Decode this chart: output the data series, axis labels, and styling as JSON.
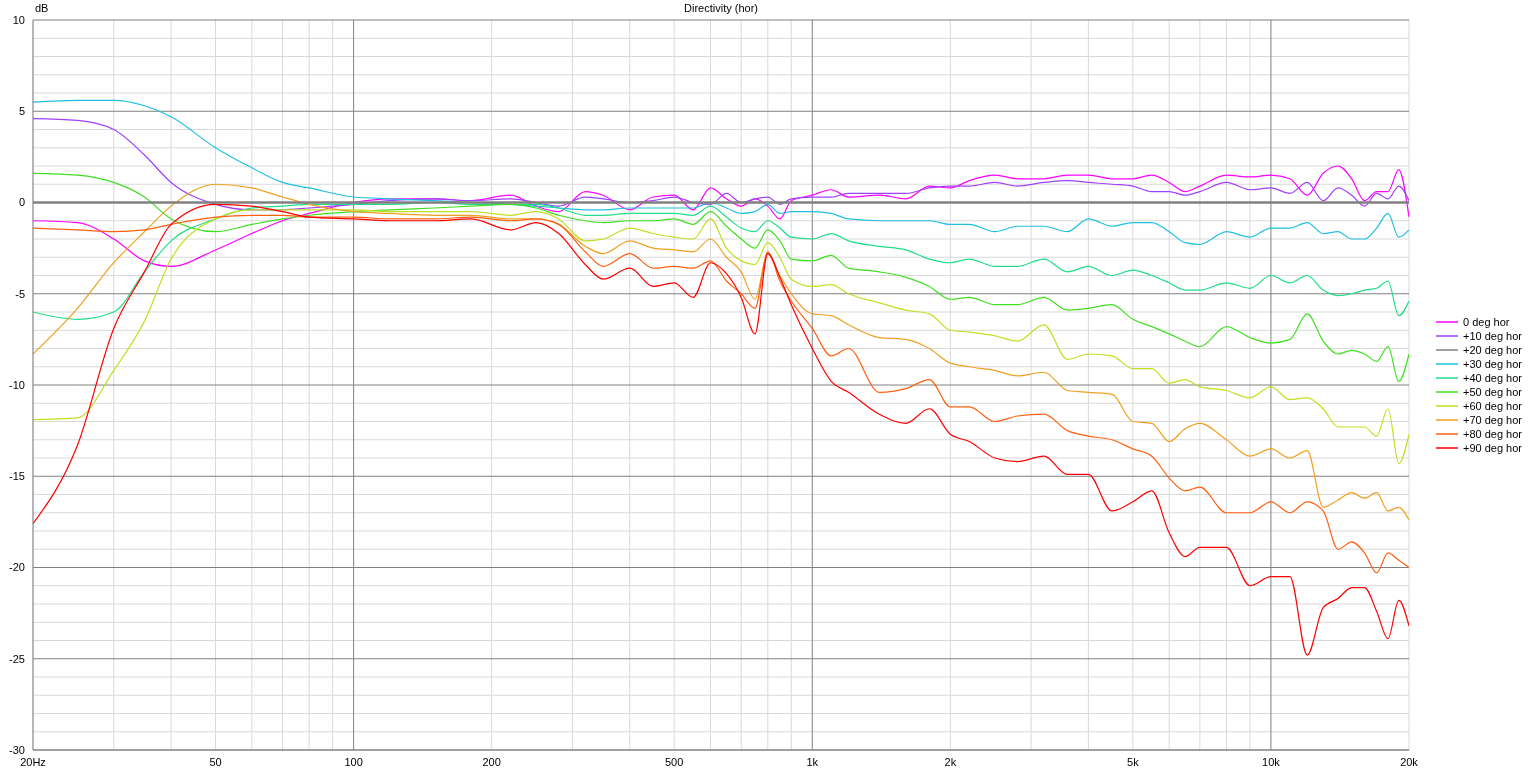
{
  "chart_data": {
    "type": "line",
    "title": "Directivity (hor)",
    "ylabel": "dB",
    "x": [
      20,
      25,
      30,
      35,
      40,
      50,
      60,
      70,
      80,
      100,
      120,
      150,
      180,
      220,
      250,
      280,
      320,
      350,
      400,
      450,
      500,
      550,
      600,
      650,
      700,
      750,
      800,
      850,
      900,
      1000,
      1100,
      1200,
      1400,
      1600,
      1800,
      2000,
      2200,
      2500,
      2800,
      3200,
      3600,
      4000,
      4500,
      5000,
      5500,
      6000,
      6500,
      7000,
      8000,
      9000,
      10000,
      11000,
      12000,
      13000,
      14000,
      15000,
      16000,
      17000,
      18000,
      19000,
      20000
    ],
    "log": "x",
    "xlim": [
      20,
      20000
    ],
    "xticks": [
      {
        "value": 20,
        "label": "20Hz"
      },
      {
        "value": 30,
        "label": null
      },
      {
        "value": 40,
        "label": null
      },
      50,
      {
        "value": 60,
        "label": null
      },
      {
        "value": 70,
        "label": null
      },
      {
        "value": 80,
        "label": null
      },
      {
        "value": 90,
        "label": null
      },
      100,
      200,
      {
        "value": 300,
        "label": null
      },
      {
        "value": 400,
        "label": null
      },
      500,
      {
        "value": 600,
        "label": null
      },
      {
        "value": 700,
        "label": null
      },
      {
        "value": 800,
        "label": null
      },
      {
        "value": 900,
        "label": null
      },
      {
        "value": 1000,
        "label": "1k"
      },
      {
        "value": 2000,
        "label": "2k"
      },
      {
        "value": 3000,
        "label": null
      },
      {
        "value": 4000,
        "label": null
      },
      {
        "value": 5000,
        "label": "5k"
      },
      {
        "value": 6000,
        "label": null
      },
      {
        "value": 7000,
        "label": null
      },
      {
        "value": 8000,
        "label": null
      },
      {
        "value": 9000,
        "label": null
      },
      {
        "value": 10000,
        "label": "10k"
      },
      {
        "value": 20000,
        "label": "20k"
      }
    ],
    "ylim": [
      -30,
      10
    ],
    "yticks": [
      -30,
      {
        "value": -29,
        "label": null
      },
      {
        "value": -28,
        "label": null
      },
      {
        "value": -27,
        "label": null
      },
      {
        "value": -26,
        "label": null
      },
      -25,
      {
        "value": -24,
        "label": null
      },
      {
        "value": -23,
        "label": null
      },
      {
        "value": -22,
        "label": null
      },
      {
        "value": -21,
        "label": null
      },
      -20,
      {
        "value": -19,
        "label": null
      },
      {
        "value": -18,
        "label": null
      },
      {
        "value": -17,
        "label": null
      },
      {
        "value": -16,
        "label": null
      },
      -15,
      {
        "value": -14,
        "label": null
      },
      {
        "value": -13,
        "label": null
      },
      {
        "value": -12,
        "label": null
      },
      {
        "value": -11,
        "label": null
      },
      -10,
      {
        "value": -9,
        "label": null
      },
      {
        "value": -8,
        "label": null
      },
      {
        "value": -7,
        "label": null
      },
      {
        "value": -6,
        "label": null
      },
      -5,
      {
        "value": -4,
        "label": null
      },
      {
        "value": -3,
        "label": null
      },
      {
        "value": -2,
        "label": null
      },
      {
        "value": -1,
        "label": null
      },
      0,
      {
        "value": 1,
        "label": null
      },
      {
        "value": 2,
        "label": null
      },
      {
        "value": 3,
        "label": null
      },
      {
        "value": 4,
        "label": null
      },
      5,
      {
        "value": 6,
        "label": null
      },
      {
        "value": 7,
        "label": null
      },
      {
        "value": 8,
        "label": null
      },
      {
        "value": 9,
        "label": null
      },
      10
    ],
    "grid": true,
    "legend": "right",
    "series": [
      {
        "name": "0 deg hor",
        "color": "#ff00ff",
        "values": [
          -1.0,
          -1.1,
          -2.0,
          -3.2,
          -3.5,
          -2.6,
          -1.7,
          -1.0,
          -0.6,
          0.0,
          0.2,
          0.2,
          0.1,
          0.4,
          -0.2,
          -0.5,
          0.6,
          0.4,
          -0.4,
          0.3,
          0.4,
          -0.4,
          0.8,
          0.2,
          -0.2,
          0.2,
          -0.2,
          -0.9,
          0.1,
          0.4,
          0.7,
          0.3,
          0.4,
          0.2,
          0.9,
          0.8,
          1.2,
          1.5,
          1.3,
          1.3,
          1.5,
          1.5,
          1.3,
          1.3,
          1.5,
          1.1,
          0.6,
          0.9,
          1.5,
          1.4,
          1.5,
          1.3,
          0.4,
          1.6,
          2.0,
          1.3,
          0.1,
          0.6,
          0.6,
          1.8,
          -0.8
        ]
      },
      {
        "name": "+10 deg hor",
        "color": "#a040ff",
        "values": [
          4.6,
          4.5,
          4.0,
          2.6,
          1.1,
          -0.1,
          -0.4,
          -0.4,
          -0.3,
          -0.1,
          0.1,
          0.2,
          0.1,
          0.2,
          0.0,
          -0.2,
          0.3,
          0.2,
          0.0,
          0.1,
          0.3,
          0.0,
          -0.1,
          0.5,
          0.0,
          0.2,
          0.3,
          -0.1,
          0.2,
          0.3,
          0.3,
          0.5,
          0.5,
          0.5,
          0.8,
          0.9,
          0.9,
          1.1,
          0.9,
          1.1,
          1.2,
          1.1,
          1.0,
          0.9,
          0.6,
          0.6,
          0.4,
          0.6,
          1.1,
          0.7,
          0.8,
          0.5,
          1.1,
          0.1,
          0.8,
          0.4,
          -0.2,
          0.5,
          0.2,
          0.9,
          0.1
        ]
      },
      {
        "name": "+20 deg hor",
        "color": "#808080",
        "values": [
          0,
          0,
          0,
          0,
          0,
          0,
          0,
          0,
          0,
          0,
          0,
          0,
          0,
          0,
          0,
          0,
          0,
          0,
          0,
          0,
          0,
          0,
          0,
          0,
          0,
          0,
          0,
          0,
          0,
          0,
          0,
          0,
          0,
          0,
          0,
          0,
          0,
          0,
          0,
          0,
          0,
          0,
          0,
          0,
          0,
          0,
          0,
          0,
          0,
          0,
          0,
          0,
          0,
          0,
          0,
          0,
          0,
          0,
          0,
          0,
          0
        ]
      },
      {
        "name": "+30 deg hor",
        "color": "#20c0e0",
        "values": [
          5.5,
          5.6,
          5.6,
          5.3,
          4.7,
          3.0,
          1.9,
          1.1,
          0.8,
          0.3,
          0.2,
          0.1,
          0.0,
          -0.1,
          -0.2,
          -0.3,
          -0.4,
          -0.4,
          -0.3,
          -0.3,
          -0.3,
          -0.3,
          0.0,
          -0.3,
          -0.6,
          -0.5,
          -0.1,
          -0.6,
          -0.5,
          -0.5,
          -0.6,
          -0.9,
          -1.0,
          -1.0,
          -1.0,
          -1.2,
          -1.2,
          -1.6,
          -1.3,
          -1.3,
          -1.6,
          -0.9,
          -1.3,
          -1.1,
          -1.1,
          -1.6,
          -2.2,
          -2.3,
          -1.6,
          -1.9,
          -1.4,
          -1.4,
          -1.1,
          -1.7,
          -1.6,
          -2.0,
          -2.0,
          -1.4,
          -0.6,
          -1.9,
          -1.5
        ]
      },
      {
        "name": "+40 deg hor",
        "color": "#20dd88",
        "values": [
          -6.0,
          -6.4,
          -6.0,
          -3.8,
          -2.1,
          -0.9,
          -0.3,
          -0.2,
          -0.1,
          -0.1,
          -0.1,
          0.0,
          -0.1,
          -0.1,
          -0.1,
          -0.3,
          -0.7,
          -0.7,
          -0.6,
          -0.6,
          -0.6,
          -0.7,
          -0.2,
          -0.8,
          -1.4,
          -1.6,
          -1.0,
          -1.4,
          -1.9,
          -2.0,
          -1.7,
          -2.1,
          -2.4,
          -2.6,
          -3.1,
          -3.3,
          -3.1,
          -3.5,
          -3.5,
          -3.1,
          -3.8,
          -3.5,
          -4.0,
          -3.7,
          -4.0,
          -4.4,
          -4.8,
          -4.8,
          -4.4,
          -4.7,
          -4.0,
          -4.4,
          -4.0,
          -4.8,
          -5.1,
          -5.0,
          -4.8,
          -4.7,
          -4.3,
          -6.2,
          -5.4
        ]
      },
      {
        "name": "+50 deg hor",
        "color": "#40e020",
        "values": [
          1.6,
          1.5,
          1.1,
          0.3,
          -0.9,
          -1.6,
          -1.2,
          -0.9,
          -0.7,
          -0.5,
          -0.4,
          -0.3,
          -0.2,
          -0.1,
          -0.3,
          -0.7,
          -1.0,
          -1.1,
          -1.0,
          -1.0,
          -0.9,
          -1.2,
          -0.5,
          -1.3,
          -2.0,
          -2.5,
          -1.5,
          -2.1,
          -3.1,
          -3.2,
          -2.9,
          -3.6,
          -3.8,
          -4.1,
          -4.6,
          -5.3,
          -5.2,
          -5.6,
          -5.6,
          -5.2,
          -5.9,
          -5.8,
          -5.6,
          -6.4,
          -6.8,
          -7.2,
          -7.6,
          -7.9,
          -6.8,
          -7.4,
          -7.7,
          -7.5,
          -6.1,
          -7.6,
          -8.3,
          -8.1,
          -8.3,
          -8.7,
          -7.9,
          -9.8,
          -8.3
        ]
      },
      {
        "name": "+60 deg hor",
        "color": "#c0e020",
        "values": [
          -11.9,
          -11.8,
          -9.2,
          -6.5,
          -3.1,
          -0.9,
          -0.4,
          -0.4,
          -0.4,
          -0.4,
          -0.5,
          -0.5,
          -0.5,
          -0.7,
          -0.5,
          -0.9,
          -2.1,
          -2.0,
          -1.4,
          -1.7,
          -1.9,
          -2.0,
          -0.9,
          -2.5,
          -3.2,
          -3.4,
          -2.2,
          -3.0,
          -4.2,
          -4.6,
          -4.5,
          -5.0,
          -5.5,
          -5.9,
          -6.1,
          -7.0,
          -7.1,
          -7.3,
          -7.6,
          -6.7,
          -8.6,
          -8.3,
          -8.4,
          -9.1,
          -9.1,
          -9.9,
          -9.7,
          -10.1,
          -10.3,
          -10.7,
          -10.1,
          -10.8,
          -10.7,
          -11.3,
          -12.3,
          -12.3,
          -12.3,
          -12.8,
          -11.3,
          -14.3,
          -12.7
        ]
      },
      {
        "name": "+70 deg hor",
        "color": "#f0a020",
        "values": [
          -8.3,
          -5.8,
          -3.3,
          -1.6,
          -0.2,
          1.0,
          0.8,
          0.3,
          -0.1,
          -0.5,
          -0.6,
          -0.7,
          -0.7,
          -0.9,
          -0.9,
          -1.2,
          -2.4,
          -2.8,
          -2.1,
          -2.5,
          -2.6,
          -2.7,
          -2.0,
          -3.0,
          -3.8,
          -5.3,
          -2.8,
          -4.0,
          -5.0,
          -6.1,
          -6.2,
          -6.7,
          -7.4,
          -7.5,
          -8.0,
          -8.8,
          -9.0,
          -9.2,
          -9.5,
          -9.3,
          -10.3,
          -10.4,
          -10.5,
          -12.0,
          -12.1,
          -13.1,
          -12.4,
          -12.1,
          -13.0,
          -13.9,
          -13.5,
          -14.0,
          -13.6,
          -16.7,
          -16.3,
          -15.9,
          -16.2,
          -15.9,
          -16.9,
          -16.7,
          -17.4
        ]
      },
      {
        "name": "+80 deg hor",
        "color": "#ff6010",
        "values": [
          -1.4,
          -1.5,
          -1.6,
          -1.5,
          -1.2,
          -0.8,
          -0.7,
          -0.7,
          -0.8,
          -0.8,
          -0.9,
          -0.9,
          -0.8,
          -1.0,
          -0.9,
          -1.2,
          -2.7,
          -3.5,
          -2.8,
          -3.6,
          -3.5,
          -3.6,
          -3.2,
          -4.3,
          -5.0,
          -5.8,
          -2.7,
          -4.3,
          -5.4,
          -6.9,
          -8.4,
          -8.0,
          -10.4,
          -10.2,
          -9.7,
          -11.2,
          -11.2,
          -12.0,
          -11.7,
          -11.6,
          -12.5,
          -12.8,
          -13.0,
          -13.5,
          -13.9,
          -15.1,
          -15.8,
          -15.6,
          -17.0,
          -17.0,
          -16.4,
          -17.0,
          -16.4,
          -16.9,
          -19.0,
          -18.6,
          -19.2,
          -20.3,
          -19.2,
          -19.6,
          -20.0
        ]
      },
      {
        "name": "+90 deg hor",
        "color": "#ff0000",
        "values": [
          -17.6,
          -13.3,
          -6.9,
          -3.8,
          -1.2,
          -0.1,
          -0.2,
          -0.5,
          -0.8,
          -0.9,
          -1.0,
          -1.0,
          -0.9,
          -1.5,
          -1.1,
          -1.7,
          -3.4,
          -4.2,
          -3.6,
          -4.6,
          -4.4,
          -5.2,
          -3.3,
          -3.9,
          -5.2,
          -7.2,
          -2.8,
          -4.1,
          -5.6,
          -8.0,
          -9.8,
          -10.4,
          -11.6,
          -12.1,
          -11.3,
          -12.7,
          -13.1,
          -14.0,
          -14.2,
          -13.9,
          -14.9,
          -14.9,
          -16.9,
          -16.4,
          -15.8,
          -18.1,
          -19.4,
          -18.9,
          -18.9,
          -21.0,
          -20.5,
          -20.5,
          -24.8,
          -22.2,
          -21.7,
          -21.1,
          -21.1,
          -22.4,
          -23.9,
          -21.8,
          -23.2
        ]
      }
    ]
  }
}
